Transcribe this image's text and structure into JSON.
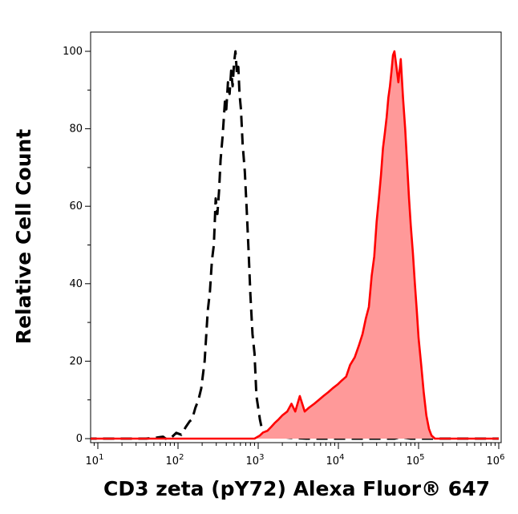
{
  "chart_data": {
    "type": "area",
    "xlabel": "CD3 zeta (pY72) Alexa Fluor® 647",
    "ylabel": "Relative Cell Count",
    "xscale": "log",
    "xlim": [
      7,
      1200000
    ],
    "ylim": [
      -1,
      105
    ],
    "yticks": [
      0,
      20,
      40,
      60,
      80,
      100
    ],
    "xtick_labels": [
      {
        "base": "10",
        "exp": "1",
        "value": 10
      },
      {
        "base": "10",
        "exp": "2",
        "value": 100
      },
      {
        "base": "10",
        "exp": "3",
        "value": 1000
      },
      {
        "base": "10",
        "exp": "4",
        "value": 10000
      },
      {
        "base": "10",
        "exp": "5",
        "value": 100000
      },
      {
        "base": "10",
        "exp": "6",
        "value": 1000000
      }
    ],
    "grid": false,
    "legend": "none",
    "series": [
      {
        "style": "dashed",
        "color": "#000000",
        "fill": "none",
        "points": [
          [
            7,
            0
          ],
          [
            40,
            0
          ],
          [
            55,
            0.3
          ],
          [
            65,
            0.5
          ],
          [
            70,
            0
          ],
          [
            80,
            0
          ],
          [
            95,
            1.5
          ],
          [
            110,
            1
          ],
          [
            125,
            3
          ],
          [
            140,
            4.5
          ],
          [
            150,
            5
          ],
          [
            165,
            8
          ],
          [
            180,
            10
          ],
          [
            195,
            13
          ],
          [
            215,
            20
          ],
          [
            235,
            33
          ],
          [
            250,
            38
          ],
          [
            265,
            46
          ],
          [
            280,
            50
          ],
          [
            295,
            62
          ],
          [
            310,
            58
          ],
          [
            325,
            64
          ],
          [
            340,
            72
          ],
          [
            360,
            78
          ],
          [
            385,
            87
          ],
          [
            400,
            85
          ],
          [
            420,
            92
          ],
          [
            440,
            89
          ],
          [
            460,
            95
          ],
          [
            480,
            91
          ],
          [
            500,
            97
          ],
          [
            520,
            100
          ],
          [
            545,
            94
          ],
          [
            565,
            96
          ],
          [
            585,
            89
          ],
          [
            610,
            85
          ],
          [
            640,
            76
          ],
          [
            680,
            69
          ],
          [
            720,
            59
          ],
          [
            760,
            48
          ],
          [
            800,
            37
          ],
          [
            850,
            27
          ],
          [
            900,
            22
          ],
          [
            950,
            11
          ],
          [
            1000,
            8
          ],
          [
            1050,
            5
          ],
          [
            1100,
            3
          ],
          [
            1200,
            2
          ],
          [
            1400,
            1
          ],
          [
            1600,
            0.8
          ],
          [
            1800,
            0.5
          ],
          [
            2500,
            0.2
          ],
          [
            4000,
            0
          ],
          [
            50000,
            0
          ],
          [
            60000,
            0.4
          ],
          [
            80000,
            0
          ],
          [
            1000000,
            0
          ]
        ]
      },
      {
        "style": "solid",
        "color": "#ff0000",
        "fill": "#ff9999",
        "points": [
          [
            7,
            0
          ],
          [
            900,
            0
          ],
          [
            1050,
            0.8
          ],
          [
            1150,
            1.6
          ],
          [
            1300,
            2
          ],
          [
            1450,
            3
          ],
          [
            1600,
            4
          ],
          [
            1800,
            5
          ],
          [
            2000,
            6
          ],
          [
            2300,
            7
          ],
          [
            2600,
            9
          ],
          [
            2900,
            7
          ],
          [
            3300,
            11
          ],
          [
            3800,
            7
          ],
          [
            4300,
            8
          ],
          [
            5000,
            9
          ],
          [
            5700,
            10
          ],
          [
            6500,
            11
          ],
          [
            7500,
            12
          ],
          [
            8500,
            13
          ],
          [
            9800,
            14
          ],
          [
            11000,
            15
          ],
          [
            12500,
            16
          ],
          [
            14000,
            19
          ],
          [
            16000,
            21
          ],
          [
            18000,
            24
          ],
          [
            20000,
            27
          ],
          [
            22000,
            31
          ],
          [
            24000,
            34
          ],
          [
            26000,
            42
          ],
          [
            28000,
            47
          ],
          [
            30000,
            56
          ],
          [
            32000,
            62
          ],
          [
            34000,
            68
          ],
          [
            36000,
            75
          ],
          [
            38000,
            79
          ],
          [
            40000,
            83
          ],
          [
            42000,
            88
          ],
          [
            44000,
            91
          ],
          [
            46000,
            95
          ],
          [
            48000,
            99
          ],
          [
            50000,
            100
          ],
          [
            53000,
            96
          ],
          [
            56000,
            92
          ],
          [
            60000,
            98
          ],
          [
            64000,
            88
          ],
          [
            68000,
            80
          ],
          [
            72000,
            71
          ],
          [
            76000,
            62
          ],
          [
            80000,
            55
          ],
          [
            85000,
            48
          ],
          [
            90000,
            40
          ],
          [
            95000,
            33
          ],
          [
            100000,
            26
          ],
          [
            108000,
            19
          ],
          [
            116000,
            12
          ],
          [
            125000,
            6
          ],
          [
            135000,
            2.5
          ],
          [
            145000,
            0.8
          ],
          [
            160000,
            0
          ],
          [
            1000000,
            0
          ]
        ]
      }
    ]
  }
}
